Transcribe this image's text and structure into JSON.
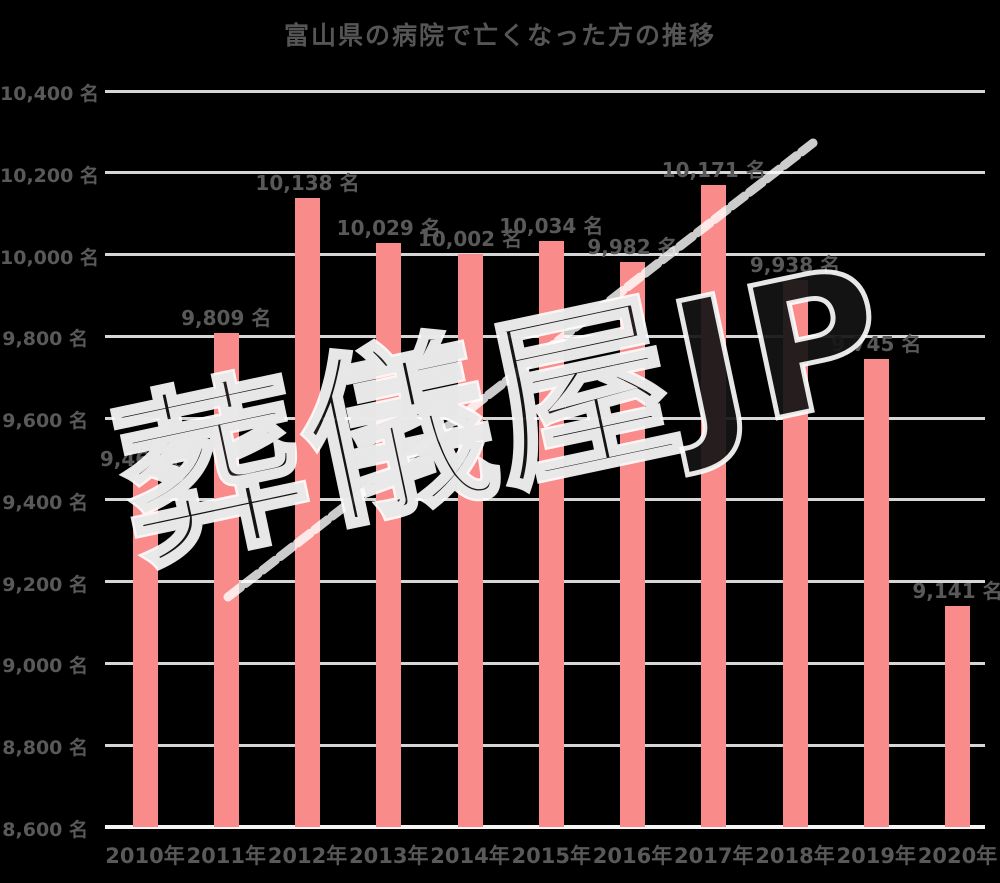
{
  "watermark": {
    "text": "葬儀屋JP"
  },
  "chart_data": {
    "type": "bar",
    "title": "富山県の病院で亡くなった方の推移",
    "categories": [
      "2010年",
      "2011年",
      "2012年",
      "2013年",
      "2014年",
      "2015年",
      "2016年",
      "2017年",
      "2018年",
      "2019年",
      "2020年"
    ],
    "values": [
      9464,
      9809,
      10138,
      10029,
      10002,
      10034,
      9982,
      10171,
      9938,
      9745,
      9141
    ],
    "bar_labels": [
      "9,464 名",
      "9,809 名",
      "10,138 名",
      "10,029 名",
      "10,002 名",
      "10,034 名",
      "9,982 名",
      "10,171 名",
      "9,938 名",
      "9,745 名",
      "9,141 名"
    ],
    "unit": "名",
    "xlabel": "",
    "ylabel": "",
    "ylim": [
      8600,
      10400
    ],
    "ytick_step": 200,
    "ytick_values": [
      10400,
      10200,
      10000,
      9800,
      9600,
      9400,
      9200,
      9000,
      8800,
      8600
    ],
    "ytick_labels": [
      "10,400 名",
      "10,200 名",
      "10,000 名",
      "9,800 名",
      "9,600 名",
      "9,400 名",
      "9,200 名",
      "9,000 名",
      "8,800 名",
      "8,600 名"
    ],
    "grid": true,
    "legend": false,
    "trendline": {
      "present": true,
      "direction": "up",
      "style": "chalk-dashed"
    },
    "colors": {
      "background": "#000000",
      "bar": "#F98B8B",
      "grid": "#D6D6D6",
      "axis": "#F5F5F5",
      "text": "#595959",
      "trendline": "#FFFFFF",
      "watermark_outline": "#FFFFFF"
    }
  }
}
